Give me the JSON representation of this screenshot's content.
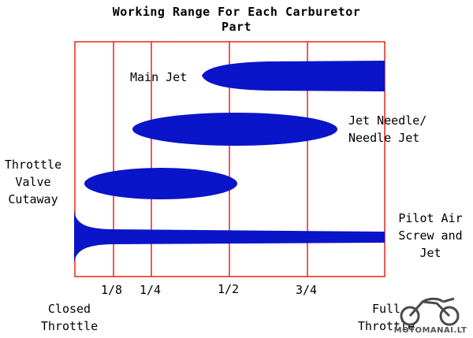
{
  "title": {
    "line1": "Working Range For Each Carburetor",
    "line2": "Part"
  },
  "colors": {
    "frame": "#e8251c",
    "shape": "#0a14c8"
  },
  "parts": {
    "main_jet": {
      "label": "Main Jet",
      "range": [
        0.44,
        1.0
      ]
    },
    "jet_needle": {
      "line1": "Jet Needle/",
      "line2": "Needle Jet",
      "range": [
        0.2,
        0.85
      ]
    },
    "throttle_valve": {
      "line1": "Throttle",
      "line2": "Valve",
      "line3": "Cutaway",
      "range": [
        0.03,
        0.54
      ]
    },
    "pilot": {
      "line1": "Pilot Air",
      "line2": "Screw and",
      "line3": "Jet",
      "range": [
        0.0,
        1.0
      ]
    }
  },
  "ticks": {
    "eighth": "1/8",
    "quarter": "1/4",
    "half": "1/2",
    "three_quarter": "3/4"
  },
  "ends": {
    "closed_line1": "Closed",
    "closed_line2": "Throttle",
    "full_line1": "Full",
    "full_line2": "Throttle"
  },
  "logo": {
    "text": "MOTOMANAI.LT",
    "icon": "motorcycle-icon"
  }
}
